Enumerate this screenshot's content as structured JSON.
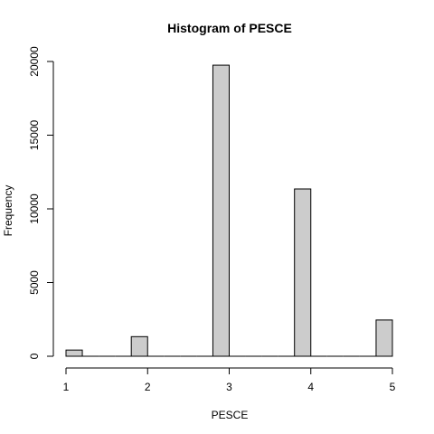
{
  "chart_data": {
    "type": "bar",
    "title": "Histogram of PESCE",
    "xlabel": "PESCE",
    "ylabel": "Frequency",
    "bins": [
      {
        "from": 1.0,
        "to": 1.2,
        "count": 420
      },
      {
        "from": 1.2,
        "to": 1.4,
        "count": 0
      },
      {
        "from": 1.4,
        "to": 1.6,
        "count": 0
      },
      {
        "from": 1.6,
        "to": 1.8,
        "count": 0
      },
      {
        "from": 1.8,
        "to": 2.0,
        "count": 1330
      },
      {
        "from": 2.0,
        "to": 2.2,
        "count": 0
      },
      {
        "from": 2.2,
        "to": 2.4,
        "count": 0
      },
      {
        "from": 2.4,
        "to": 2.6,
        "count": 0
      },
      {
        "from": 2.6,
        "to": 2.8,
        "count": 0
      },
      {
        "from": 2.8,
        "to": 3.0,
        "count": 19750
      },
      {
        "from": 3.0,
        "to": 3.2,
        "count": 0
      },
      {
        "from": 3.2,
        "to": 3.4,
        "count": 0
      },
      {
        "from": 3.4,
        "to": 3.6,
        "count": 0
      },
      {
        "from": 3.6,
        "to": 3.8,
        "count": 0
      },
      {
        "from": 3.8,
        "to": 4.0,
        "count": 11350
      },
      {
        "from": 4.0,
        "to": 4.2,
        "count": 0
      },
      {
        "from": 4.2,
        "to": 4.4,
        "count": 0
      },
      {
        "from": 4.4,
        "to": 4.6,
        "count": 0
      },
      {
        "from": 4.6,
        "to": 4.8,
        "count": 0
      },
      {
        "from": 4.8,
        "to": 5.0,
        "count": 2460
      }
    ],
    "xlim": [
      1,
      5
    ],
    "ylim": [
      0,
      20000
    ],
    "x_ticks": [
      1,
      2,
      3,
      4,
      5
    ],
    "y_ticks": [
      0,
      5000,
      10000,
      15000,
      20000
    ],
    "bar_color": "#cccccc",
    "grid": false
  }
}
